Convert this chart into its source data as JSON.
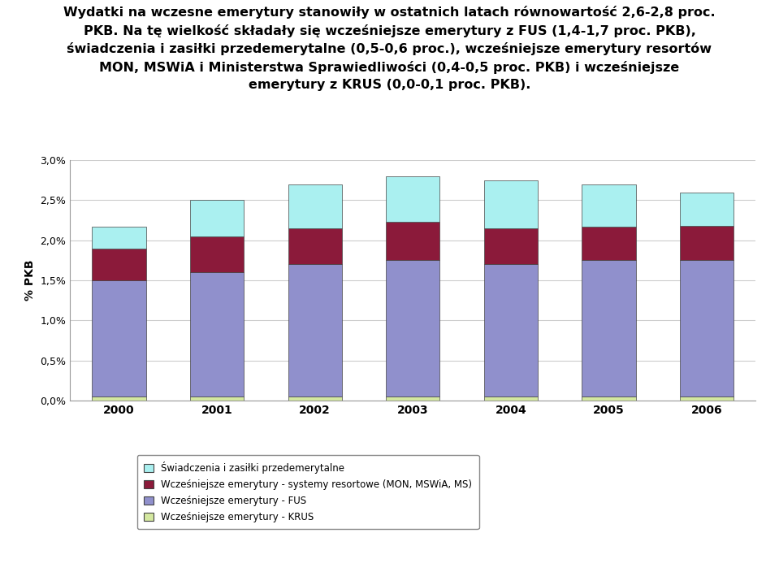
{
  "years": [
    2000,
    2001,
    2002,
    2003,
    2004,
    2005,
    2006
  ],
  "krus": [
    0.05,
    0.05,
    0.05,
    0.05,
    0.05,
    0.05,
    0.05
  ],
  "fus": [
    1.45,
    1.55,
    1.65,
    1.7,
    1.65,
    1.7,
    1.7
  ],
  "resortowe": [
    0.4,
    0.45,
    0.45,
    0.48,
    0.45,
    0.42,
    0.43
  ],
  "swiadczenia": [
    0.27,
    0.45,
    0.55,
    0.57,
    0.6,
    0.53,
    0.42
  ],
  "colors": {
    "krus": "#d4e8a0",
    "fus": "#9090cc",
    "resortowe": "#8b1a3a",
    "swiadczenia": "#aaf0f0"
  },
  "ylabel": "% PKB",
  "ylim": [
    0.0,
    3.0
  ],
  "yticks": [
    0.0,
    0.5,
    1.0,
    1.5,
    2.0,
    2.5,
    3.0
  ],
  "ytick_labels": [
    "0,0%",
    "0,5%",
    "1,0%",
    "1,5%",
    "2,0%",
    "2,5%",
    "3,0%"
  ],
  "legend_labels": [
    "Świadczenia i zasiłki przedemerytalne",
    "Wcześniejsze emerytury - systemy resortowe (MON, MSWiA, MS)",
    "Wcześniejsze emerytury - FUS",
    "Wcześniejsze emerytury - KRUS"
  ],
  "title_line1": "Wydatki na wczesne emerytury stanowiły w ostatnich latach równowartość 2,6-2,8 proc.",
  "title_line2": "PKB. Na tę wielkość składały się wcześniejsze emerytury z FUS (1,4-1,7 proc. PKB),",
  "title_line3": "świadczenia i zasiłki przedemerytalne (0,5-0,6 proc.), wcześniejsze emerytury resortów",
  "title_line4": "MON, MSWiA i Ministerstwa Sprawiedliwości (0,4-0,5 proc. PKB) i wcześniejsze",
  "title_line5": "emerytury z KRUS (0,0-0,1 proc. PKB).",
  "bar_width": 0.55,
  "background_color": "#ffffff",
  "grid_color": "#cccccc",
  "edgecolor": "#444444"
}
